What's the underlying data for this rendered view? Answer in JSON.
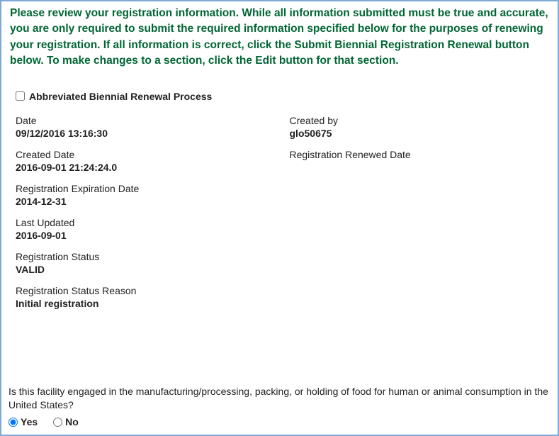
{
  "instructions": "Please review your registration information. While all information submitted must be true and accurate, you are only required to submit the required information specified below for the purposes of renewing your registration. If all information is correct, click the Submit Biennial Registration Renewal button below. To make changes to a section, click the Edit button for that section.",
  "abbreviated_label": "Abbreviated Biennial Renewal Process",
  "fields": {
    "date": {
      "label": "Date",
      "value": "09/12/2016 13:16:30"
    },
    "created_by": {
      "label": "Created by",
      "value": "glo50675"
    },
    "created_date": {
      "label": "Created Date",
      "value": "2016-09-01 21:24:24.0"
    },
    "renewed_date": {
      "label": "Registration Renewed Date",
      "value": ""
    },
    "expiration_date": {
      "label": "Registration Expiration Date",
      "value": "2014-12-31"
    },
    "last_updated": {
      "label": "Last Updated",
      "value": "2016-09-01"
    },
    "status": {
      "label": "Registration Status",
      "value": "VALID"
    },
    "status_reason": {
      "label": "Registration Status Reason",
      "value": "Initial registration"
    }
  },
  "question": "Is this facility engaged in the manufacturing/processing, packing, or holding of food for human or animal consumption in the United States?",
  "options": {
    "yes": "Yes",
    "no": "No"
  },
  "colors": {
    "border": "#7da9d8",
    "instruction_text": "#006633",
    "body_text": "#222222",
    "background": "#ffffff"
  }
}
